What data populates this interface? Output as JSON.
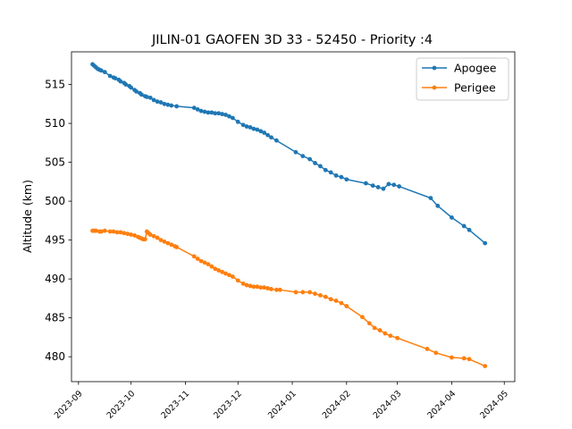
{
  "chart_data": {
    "type": "line",
    "title": "JILIN-01 GAOFEN 3D 33 - 52450 - Priority :4",
    "xlabel": "",
    "ylabel": "Altitude (km)",
    "xlim": [
      "2023-08-28",
      "2024-05-07"
    ],
    "ylim": [
      476.8,
      519.2
    ],
    "x_ticks": [
      "2023-09",
      "2023-10",
      "2023-11",
      "2023-12",
      "2024-01",
      "2024-02",
      "2024-03",
      "2024-04",
      "2024-05"
    ],
    "y_ticks": [
      480,
      485,
      490,
      495,
      500,
      505,
      510,
      515
    ],
    "grid": false,
    "legend_position": "top-right",
    "series": [
      {
        "name": "Apogee",
        "color": "#1f77b4",
        "points": [
          [
            "2023-09-09",
            517.6
          ],
          [
            "2023-09-10",
            517.4
          ],
          [
            "2023-09-11",
            517.2
          ],
          [
            "2023-09-12",
            517.0
          ],
          [
            "2023-09-13",
            516.9
          ],
          [
            "2023-09-14",
            516.8
          ],
          [
            "2023-09-16",
            516.6
          ],
          [
            "2023-09-19",
            516.1
          ],
          [
            "2023-09-21",
            515.9
          ],
          [
            "2023-09-22",
            515.8
          ],
          [
            "2023-09-24",
            515.6
          ],
          [
            "2023-09-25",
            515.4
          ],
          [
            "2023-09-27",
            515.2
          ],
          [
            "2023-09-28",
            515.0
          ],
          [
            "2023-09-30",
            514.8
          ],
          [
            "2023-10-01",
            514.6
          ],
          [
            "2023-10-03",
            514.3
          ],
          [
            "2023-10-04",
            514.1
          ],
          [
            "2023-10-06",
            513.9
          ],
          [
            "2023-10-07",
            513.7
          ],
          [
            "2023-10-09",
            513.5
          ],
          [
            "2023-10-10",
            513.4
          ],
          [
            "2023-10-12",
            513.3
          ],
          [
            "2023-10-14",
            513.0
          ],
          [
            "2023-10-16",
            512.8
          ],
          [
            "2023-10-18",
            512.7
          ],
          [
            "2023-10-20",
            512.5
          ],
          [
            "2023-10-22",
            512.4
          ],
          [
            "2023-10-24",
            512.3
          ],
          [
            "2023-10-27",
            512.2
          ],
          [
            "2023-11-06",
            512.0
          ],
          [
            "2023-11-08",
            511.8
          ],
          [
            "2023-11-10",
            511.6
          ],
          [
            "2023-11-12",
            511.5
          ],
          [
            "2023-11-14",
            511.4
          ],
          [
            "2023-11-16",
            511.4
          ],
          [
            "2023-11-18",
            511.3
          ],
          [
            "2023-11-20",
            511.3
          ],
          [
            "2023-11-22",
            511.2
          ],
          [
            "2023-11-24",
            511.1
          ],
          [
            "2023-11-26",
            510.9
          ],
          [
            "2023-11-28",
            510.7
          ],
          [
            "2023-12-01",
            510.2
          ],
          [
            "2023-12-04",
            509.8
          ],
          [
            "2023-12-06",
            509.6
          ],
          [
            "2023-12-08",
            509.5
          ],
          [
            "2023-12-10",
            509.3
          ],
          [
            "2023-12-12",
            509.2
          ],
          [
            "2023-12-14",
            509.0
          ],
          [
            "2023-12-16",
            508.8
          ],
          [
            "2023-12-18",
            508.5
          ],
          [
            "2023-12-20",
            508.2
          ],
          [
            "2023-12-23",
            507.8
          ],
          [
            "2024-01-03",
            506.3
          ],
          [
            "2024-01-07",
            505.8
          ],
          [
            "2024-01-11",
            505.4
          ],
          [
            "2024-01-14",
            504.9
          ],
          [
            "2024-01-17",
            504.5
          ],
          [
            "2024-01-20",
            504.0
          ],
          [
            "2024-01-23",
            503.7
          ],
          [
            "2024-01-26",
            503.3
          ],
          [
            "2024-01-29",
            503.1
          ],
          [
            "2024-02-01",
            502.8
          ],
          [
            "2024-02-12",
            502.3
          ],
          [
            "2024-02-16",
            502.0
          ],
          [
            "2024-02-19",
            501.8
          ],
          [
            "2024-02-22",
            501.6
          ],
          [
            "2024-02-25",
            502.2
          ],
          [
            "2024-02-28",
            502.1
          ],
          [
            "2024-03-02",
            501.9
          ],
          [
            "2024-03-20",
            500.4
          ],
          [
            "2024-03-24",
            499.4
          ],
          [
            "2024-04-01",
            497.9
          ],
          [
            "2024-04-08",
            496.8
          ],
          [
            "2024-04-11",
            496.3
          ],
          [
            "2024-04-20",
            494.6
          ]
        ]
      },
      {
        "name": "Perigee",
        "color": "#ff7f0e",
        "points": [
          [
            "2023-09-09",
            496.2
          ],
          [
            "2023-09-10",
            496.2
          ],
          [
            "2023-09-11",
            496.2
          ],
          [
            "2023-09-13",
            496.1
          ],
          [
            "2023-09-14",
            496.1
          ],
          [
            "2023-09-16",
            496.2
          ],
          [
            "2023-09-19",
            496.1
          ],
          [
            "2023-09-21",
            496.1
          ],
          [
            "2023-09-23",
            496.0
          ],
          [
            "2023-09-25",
            496.0
          ],
          [
            "2023-09-27",
            495.9
          ],
          [
            "2023-09-29",
            495.8
          ],
          [
            "2023-10-01",
            495.7
          ],
          [
            "2023-10-03",
            495.6
          ],
          [
            "2023-10-05",
            495.4
          ],
          [
            "2023-10-06",
            495.3
          ],
          [
            "2023-10-07",
            495.2
          ],
          [
            "2023-10-08",
            495.1
          ],
          [
            "2023-10-09",
            495.1
          ],
          [
            "2023-10-10",
            496.1
          ],
          [
            "2023-10-11",
            495.9
          ],
          [
            "2023-10-12",
            495.7
          ],
          [
            "2023-10-14",
            495.5
          ],
          [
            "2023-10-16",
            495.3
          ],
          [
            "2023-10-18",
            495.0
          ],
          [
            "2023-10-20",
            494.8
          ],
          [
            "2023-10-22",
            494.6
          ],
          [
            "2023-10-24",
            494.4
          ],
          [
            "2023-10-26",
            494.2
          ],
          [
            "2023-10-27",
            494.1
          ],
          [
            "2023-11-06",
            492.9
          ],
          [
            "2023-11-08",
            492.6
          ],
          [
            "2023-11-10",
            492.3
          ],
          [
            "2023-11-12",
            492.1
          ],
          [
            "2023-11-14",
            491.9
          ],
          [
            "2023-11-16",
            491.6
          ],
          [
            "2023-11-18",
            491.3
          ],
          [
            "2023-11-20",
            491.1
          ],
          [
            "2023-11-22",
            490.9
          ],
          [
            "2023-11-24",
            490.7
          ],
          [
            "2023-11-26",
            490.5
          ],
          [
            "2023-11-28",
            490.3
          ],
          [
            "2023-12-01",
            489.8
          ],
          [
            "2023-12-04",
            489.4
          ],
          [
            "2023-12-06",
            489.2
          ],
          [
            "2023-12-08",
            489.1
          ],
          [
            "2023-12-10",
            489.0
          ],
          [
            "2023-12-12",
            489.0
          ],
          [
            "2023-12-14",
            488.9
          ],
          [
            "2023-12-16",
            488.9
          ],
          [
            "2023-12-18",
            488.8
          ],
          [
            "2023-12-20",
            488.7
          ],
          [
            "2023-12-23",
            488.6
          ],
          [
            "2023-12-25",
            488.6
          ],
          [
            "2024-01-03",
            488.3
          ],
          [
            "2024-01-07",
            488.3
          ],
          [
            "2024-01-11",
            488.3
          ],
          [
            "2024-01-14",
            488.1
          ],
          [
            "2024-01-17",
            487.9
          ],
          [
            "2024-01-20",
            487.7
          ],
          [
            "2024-01-23",
            487.4
          ],
          [
            "2024-01-26",
            487.2
          ],
          [
            "2024-01-29",
            486.9
          ],
          [
            "2024-02-01",
            486.5
          ],
          [
            "2024-02-10",
            485.1
          ],
          [
            "2024-02-14",
            484.3
          ],
          [
            "2024-02-17",
            483.7
          ],
          [
            "2024-02-20",
            483.4
          ],
          [
            "2024-02-23",
            483.0
          ],
          [
            "2024-02-26",
            482.7
          ],
          [
            "2024-03-01",
            482.4
          ],
          [
            "2024-03-18",
            481.0
          ],
          [
            "2024-03-23",
            480.5
          ],
          [
            "2024-04-01",
            479.9
          ],
          [
            "2024-04-08",
            479.8
          ],
          [
            "2024-04-11",
            479.7
          ],
          [
            "2024-04-20",
            478.8
          ]
        ]
      }
    ]
  }
}
